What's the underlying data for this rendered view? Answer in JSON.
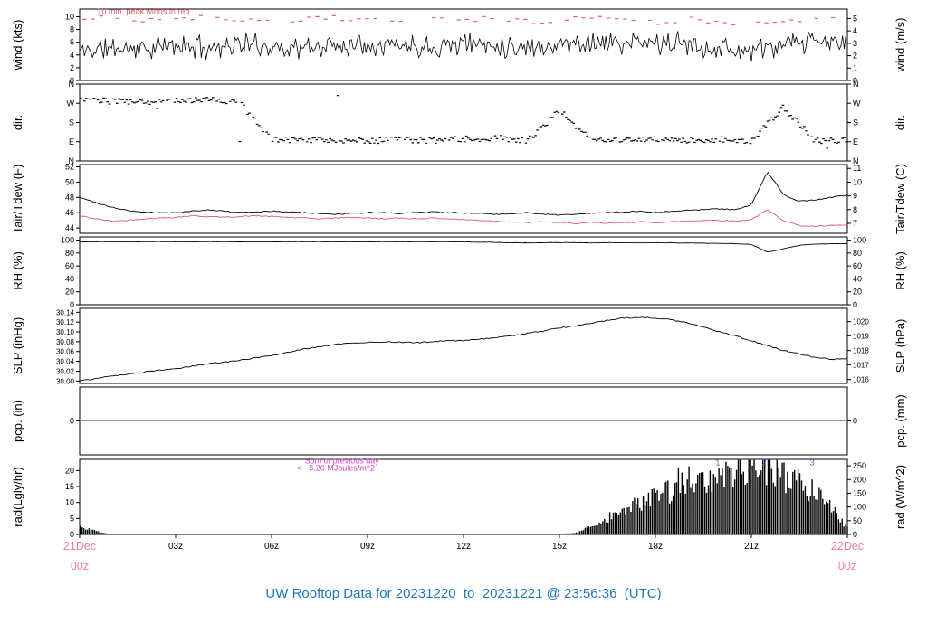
{
  "title": "UW Rooftop Data for 20231220  to  20231221 @ 23:56:36  (UTC)",
  "colors": {
    "black": "#000000",
    "red": "#e05a68",
    "pink": "#ef8095",
    "blue": "#7b96d8",
    "magenta": "#cc44cc",
    "purple": "#8844cc",
    "title": "#1b79b7"
  },
  "x_axis": {
    "hours_span": 24,
    "tick_hours": [
      3,
      6,
      9,
      12,
      15,
      18,
      21
    ],
    "tick_labels": [
      "03z",
      "06z",
      "09z",
      "12z",
      "15z",
      "18z",
      "21z"
    ],
    "start": {
      "line1": "21Dec",
      "line2": "00z"
    },
    "end": {
      "line1": "22Dec",
      "line2": "00z"
    }
  },
  "chart_data": {
    "type": "line",
    "panels": [
      {
        "id": "wind",
        "panel_type": "line",
        "left_label": "wind (kts)",
        "right_label": "wind (m/s)",
        "ylim": [
          0,
          11.2
        ],
        "left_ticks": [
          {
            "v": 0,
            "label": "0"
          },
          {
            "v": 2,
            "label": "2"
          },
          {
            "v": 4,
            "label": "4"
          },
          {
            "v": 6,
            "label": "6"
          },
          {
            "v": 8,
            "label": "8"
          },
          {
            "v": 10,
            "label": "10"
          }
        ],
        "right_ticks": [
          {
            "v": 0,
            "label": "0"
          },
          {
            "v": 1.944,
            "label": "1"
          },
          {
            "v": 3.888,
            "label": "2"
          },
          {
            "v": 5.831,
            "label": "3"
          },
          {
            "v": 7.775,
            "label": "4"
          },
          {
            "v": 9.719,
            "label": "5"
          }
        ],
        "annotations": [
          {
            "name": "peak-winds-note",
            "text": "10 min. peak winds in red",
            "x": 0.55,
            "y": 10.45,
            "color": "red",
            "anchor": "start",
            "size": 9
          }
        ],
        "series": [
          {
            "name": "wind-speed",
            "style": "noisy",
            "color": "black",
            "x_step": 1,
            "noise": 1.35,
            "seed": 11,
            "values": [
              4.6,
              5.1,
              5.0,
              5.4,
              5.2,
              5.7,
              5.3,
              5.0,
              5.5,
              5.9,
              5.6,
              5.4,
              5.9,
              5.6,
              5.2,
              5.6,
              6.1,
              5.7,
              5.9,
              5.6,
              5.1,
              4.6,
              5.4,
              6.1,
              5.8
            ]
          },
          {
            "name": "peak-wind",
            "style": "dashes",
            "color": "red",
            "x_step": 1,
            "noise": 0.4,
            "seed": 21,
            "values": [
              9.6,
              9.9,
              9.3,
              9.7,
              10.0,
              9.4,
              9.1,
              9.7,
              9.9,
              9.3,
              9.6,
              10.0,
              9.5,
              9.8,
              9.2,
              9.6,
              9.8,
              9.4,
              9.1,
              9.6,
              9.2,
              8.7,
              9.4,
              9.8,
              9.5
            ]
          }
        ]
      },
      {
        "id": "dir",
        "panel_type": "scatter",
        "left_label": "dir.",
        "right_label": "dir.",
        "ylim": [
          0,
          360
        ],
        "left_ticks": [
          {
            "v": 0,
            "label": "N"
          },
          {
            "v": 90,
            "label": "E"
          },
          {
            "v": 180,
            "label": "S"
          },
          {
            "v": 270,
            "label": "W"
          },
          {
            "v": 360,
            "label": "N"
          }
        ],
        "right_ticks": [
          {
            "v": 0,
            "label": "N"
          },
          {
            "v": 90,
            "label": "E"
          },
          {
            "v": 180,
            "label": "S"
          },
          {
            "v": 270,
            "label": "W"
          },
          {
            "v": 360,
            "label": "N"
          }
        ],
        "series": [
          {
            "name": "wind-direction",
            "style": "scatter",
            "color": "black",
            "x_step": 1,
            "noise": 14,
            "outlier_rate": 0.018,
            "seed": 31,
            "values": [
              285,
              280,
              275,
              282,
              290,
              272,
              105,
              96,
              100,
              95,
              100,
              96,
              102,
              108,
              96,
              235,
              100,
              96,
              100,
              96,
              100,
              92,
              250,
              96,
              96
            ]
          }
        ]
      },
      {
        "id": "tair-tdew",
        "panel_type": "line",
        "left_label": "Tair/Tdew (F)",
        "right_label": "Tair/Tdew (C)",
        "ylim": [
          43.3,
          52.3
        ],
        "left_ticks": [
          {
            "v": 44,
            "label": "44"
          },
          {
            "v": 46,
            "label": "46"
          },
          {
            "v": 48,
            "label": "48"
          },
          {
            "v": 50,
            "label": "50"
          },
          {
            "v": 52,
            "label": "52"
          }
        ],
        "right_ticks": [
          {
            "v": 44.6,
            "label": "7"
          },
          {
            "v": 46.4,
            "label": "8"
          },
          {
            "v": 48.2,
            "label": "9"
          },
          {
            "v": 50.0,
            "label": "10"
          },
          {
            "v": 51.8,
            "label": "11"
          }
        ],
        "series": [
          {
            "name": "tair",
            "style": "line",
            "color": "black",
            "x_step": 0.5,
            "jitter": 0.07,
            "seed": 41,
            "values": [
              48.0,
              47.3,
              46.7,
              46.3,
              46.1,
              46.0,
              46.0,
              46.2,
              46.4,
              46.2,
              46.0,
              46.1,
              46.2,
              46.1,
              46.0,
              45.9,
              45.8,
              45.9,
              46.0,
              46.0,
              45.9,
              46.0,
              46.1,
              46.0,
              46.0,
              45.9,
              45.8,
              45.9,
              46.0,
              45.8,
              45.7,
              45.8,
              45.9,
              46.0,
              46.1,
              46.2,
              46.0,
              46.2,
              46.3,
              46.4,
              46.5,
              46.4,
              47.0,
              51.4,
              48.4,
              47.5,
              47.7,
              48.0,
              48.3
            ]
          },
          {
            "name": "tdew",
            "style": "line",
            "color": "red",
            "x_step": 0.5,
            "jitter": 0.07,
            "seed": 42,
            "values": [
              45.6,
              45.2,
              44.9,
              45.0,
              45.2,
              45.3,
              45.4,
              45.6,
              45.5,
              45.4,
              45.5,
              45.6,
              45.5,
              45.4,
              45.3,
              45.2,
              45.3,
              45.4,
              45.3,
              45.2,
              45.3,
              45.2,
              45.3,
              45.2,
              45.1,
              45.0,
              44.9,
              44.8,
              44.7,
              44.8,
              44.7,
              44.6,
              44.7,
              44.6,
              44.7,
              44.8,
              44.7,
              44.8,
              44.9,
              45.0,
              45.0,
              44.9,
              45.1,
              46.4,
              45.0,
              44.3,
              44.2,
              44.3,
              44.4
            ]
          }
        ]
      },
      {
        "id": "rh",
        "panel_type": "line",
        "left_label": "RH (%)",
        "right_label": "RH (%)",
        "ylim": [
          0,
          105
        ],
        "left_ticks": [
          {
            "v": 0,
            "label": "0"
          },
          {
            "v": 20,
            "label": "20"
          },
          {
            "v": 40,
            "label": "40"
          },
          {
            "v": 60,
            "label": "60"
          },
          {
            "v": 80,
            "label": "80"
          },
          {
            "v": 100,
            "label": "100"
          }
        ],
        "right_ticks": [
          {
            "v": 0,
            "label": "0"
          },
          {
            "v": 20,
            "label": "20"
          },
          {
            "v": 40,
            "label": "40"
          },
          {
            "v": 60,
            "label": "60"
          },
          {
            "v": 80,
            "label": "80"
          },
          {
            "v": 100,
            "label": "100"
          }
        ],
        "series": [
          {
            "name": "relative-humidity",
            "style": "line",
            "color": "black",
            "x_step": 0.5,
            "jitter": 0.3,
            "seed": 51,
            "values": [
              97.4,
              97.6,
              97.5,
              97.3,
              97.6,
              97.7,
              97.5,
              97.4,
              97.6,
              97.5,
              97.3,
              97.5,
              97.6,
              97.4,
              97.5,
              97.6,
              97.5,
              97.4,
              97.3,
              97.5,
              97.6,
              97.5,
              97.4,
              97.5,
              97.3,
              97.0,
              96.5,
              96.0,
              95.6,
              96.0,
              96.3,
              96.0,
              95.8,
              96.2,
              96.0,
              95.7,
              96.0,
              95.8,
              95.5,
              95.2,
              95.0,
              94.5,
              93.5,
              81.5,
              86.5,
              92.0,
              94.0,
              94.5,
              94.5
            ]
          }
        ]
      },
      {
        "id": "slp",
        "panel_type": "line",
        "left_label": "SLP (inHg)",
        "right_label": "SLP (hPa)",
        "ylim": [
          29.995,
          30.148
        ],
        "tick_font": 8,
        "left_ticks": [
          {
            "v": 30.0,
            "label": "30.00"
          },
          {
            "v": 30.02,
            "label": "30.02"
          },
          {
            "v": 30.04,
            "label": "30.04"
          },
          {
            "v": 30.06,
            "label": "30.06"
          },
          {
            "v": 30.08,
            "label": "30.08"
          },
          {
            "v": 30.1,
            "label": "30.10"
          },
          {
            "v": 30.12,
            "label": "30.12"
          },
          {
            "v": 30.14,
            "label": "30.14"
          }
        ],
        "right_ticks": [
          {
            "v": 30.003,
            "label": "1016"
          },
          {
            "v": 30.033,
            "label": "1017"
          },
          {
            "v": 30.062,
            "label": "1018"
          },
          {
            "v": 30.092,
            "label": "1019"
          },
          {
            "v": 30.121,
            "label": "1020"
          }
        ],
        "series": [
          {
            "name": "sea-level-pressure",
            "style": "line",
            "color": "black",
            "x_step": 0.5,
            "jitter": 0.0012,
            "seed": 61,
            "values": [
              30.0,
              30.005,
              30.01,
              30.013,
              30.018,
              30.022,
              30.025,
              30.03,
              30.035,
              30.038,
              30.042,
              30.047,
              30.052,
              30.058,
              30.065,
              30.07,
              30.075,
              30.078,
              30.078,
              30.08,
              30.079,
              30.078,
              30.08,
              30.082,
              30.082,
              30.085,
              30.088,
              30.092,
              30.097,
              30.102,
              30.108,
              30.112,
              30.118,
              30.124,
              30.128,
              30.13,
              30.128,
              30.125,
              30.118,
              30.11,
              30.1,
              30.092,
              30.082,
              30.072,
              30.062,
              30.055,
              30.048,
              30.044,
              30.046
            ]
          }
        ]
      },
      {
        "id": "pcp",
        "panel_type": "line",
        "left_label": "pcp. (in)",
        "right_label": "pcp. (mm)",
        "ylim": [
          -1,
          1
        ],
        "left_ticks": [
          {
            "v": 0,
            "label": "0"
          }
        ],
        "right_ticks": [
          {
            "v": 0,
            "label": "0"
          }
        ],
        "series": [
          {
            "name": "precip",
            "style": "line",
            "color": "blue",
            "x_step": 24,
            "jitter": 0,
            "seed": 66,
            "values": [
              0,
              0
            ]
          }
        ]
      },
      {
        "id": "rad",
        "panel_type": "bar",
        "left_label": "rad(Lgly/hr)",
        "right_label": "rad (W/m^2)",
        "ylim": [
          0,
          23.5
        ],
        "left_ticks": [
          {
            "v": 0,
            "label": "0"
          },
          {
            "v": 5,
            "label": "5"
          },
          {
            "v": 10,
            "label": "10"
          },
          {
            "v": 15,
            "label": "15"
          },
          {
            "v": 20,
            "label": "20"
          }
        ],
        "right_ticks": [
          {
            "v": 0,
            "label": "0"
          },
          {
            "v": 4.3,
            "label": "50"
          },
          {
            "v": 8.6,
            "label": "100"
          },
          {
            "v": 12.9,
            "label": "150"
          },
          {
            "v": 17.2,
            "label": "200"
          },
          {
            "v": 21.5,
            "label": "250"
          }
        ],
        "annotations": [
          {
            "name": "prev-day-sum-label",
            "text": "Sum of previous day",
            "x": 8.2,
            "y": 22.2,
            "color": "magenta",
            "anchor": "middle",
            "size": 9
          },
          {
            "name": "prev-day-sum-value",
            "text": "<-- 5.26 MJoules/m^2",
            "x": 8.0,
            "y": 20.0,
            "color": "magenta",
            "anchor": "middle",
            "size": 9
          },
          {
            "name": "rad-marker-1",
            "text": "1",
            "x": 19.95,
            "y": 21.6,
            "color": "purple",
            "anchor": "middle",
            "size": 9
          },
          {
            "name": "rad-marker-2",
            "text": "2",
            "x": 21.4,
            "y": 21.6,
            "color": "purple",
            "anchor": "middle",
            "size": 9
          },
          {
            "name": "rad-marker-3",
            "text": "3",
            "x": 22.9,
            "y": 21.6,
            "color": "purple",
            "anchor": "middle",
            "size": 9
          }
        ],
        "series": [
          {
            "name": "solar-rad",
            "style": "bars",
            "color": "black",
            "x_step": 0.5,
            "seed": 71,
            "values": [
              2.3,
              1.0,
              0.2,
              0,
              0,
              0,
              0,
              0,
              0,
              0,
              0,
              0,
              0,
              0,
              0,
              0,
              0,
              0,
              0,
              0,
              0,
              0,
              0,
              0,
              0,
              0,
              0,
              0,
              0,
              0,
              0,
              0.6,
              2.5,
              4.5,
              7,
              9.5,
              12,
              14,
              15.5,
              17,
              18,
              19.5,
              21,
              20.5,
              18,
              16,
              13,
              9,
              2
            ]
          }
        ]
      }
    ]
  }
}
